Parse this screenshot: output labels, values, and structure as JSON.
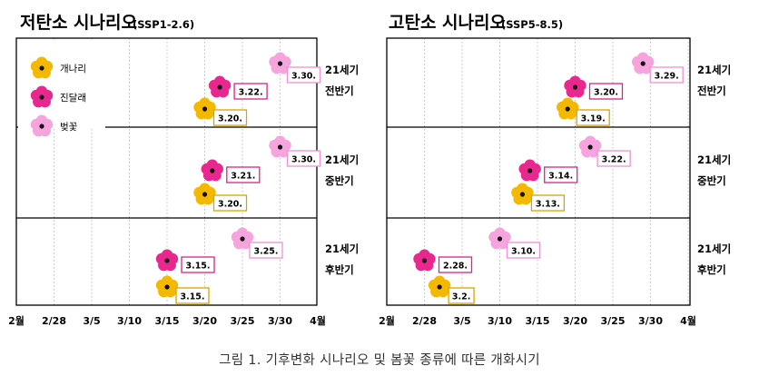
{
  "caption": "그림 1. 기후변화 시나리오 및 봄꽃 종류에 따른 개화시기",
  "colors": {
    "forsythia": "#f5b800",
    "azalea": "#e8288f",
    "cherry": "#f6a3de",
    "forsythia_box": "#d9a400",
    "azalea_box": "#d0288a",
    "cherry_box": "#f090d4"
  },
  "icons": [
    "flower-icon"
  ],
  "chart_data": [
    {
      "type": "scatter",
      "title": "저탄소 시나리오",
      "subtitle": "(SSP1-2.6)",
      "x_ticks": [
        "2월",
        "2/28",
        "3/5",
        "3/10",
        "3/15",
        "3/20",
        "3/25",
        "3/30",
        "4월"
      ],
      "xlim": [
        "2/23",
        "4/4"
      ],
      "grid": "vertical dotted",
      "legend": {
        "placement": "top-left",
        "items": [
          {
            "key": "forsythia",
            "label": "개나리"
          },
          {
            "key": "azalea",
            "label": "진달래"
          },
          {
            "key": "cherry",
            "label": "벚꽃"
          }
        ]
      },
      "periods": [
        {
          "label_line1": "21세기",
          "label_line2": "전반기",
          "points": [
            {
              "flower": "cherry",
              "date": "3/30",
              "label": "3.30."
            },
            {
              "flower": "azalea",
              "date": "3/22",
              "label": "3.22."
            },
            {
              "flower": "forsythia",
              "date": "3/20",
              "label": "3.20."
            }
          ]
        },
        {
          "label_line1": "21세기",
          "label_line2": "중반기",
          "points": [
            {
              "flower": "cherry",
              "date": "3/30",
              "label": "3.30."
            },
            {
              "flower": "azalea",
              "date": "3/21",
              "label": "3.21."
            },
            {
              "flower": "forsythia",
              "date": "3/20",
              "label": "3.20."
            }
          ]
        },
        {
          "label_line1": "21세기",
          "label_line2": "후반기",
          "points": [
            {
              "flower": "cherry",
              "date": "3/25",
              "label": "3.25."
            },
            {
              "flower": "azalea",
              "date": "3/15",
              "label": "3.15."
            },
            {
              "flower": "forsythia",
              "date": "3/15",
              "label": "3.15."
            }
          ]
        }
      ]
    },
    {
      "type": "scatter",
      "title": "고탄소 시나리오",
      "subtitle": "(SSP5-8.5)",
      "x_ticks": [
        "2월",
        "2/28",
        "3/5",
        "3/10",
        "3/15",
        "3/20",
        "3/25",
        "3/30",
        "4월"
      ],
      "xlim": [
        "2/23",
        "4/4"
      ],
      "grid": "vertical dotted",
      "periods": [
        {
          "label_line1": "21세기",
          "label_line2": "전반기",
          "points": [
            {
              "flower": "cherry",
              "date": "3/29",
              "label": "3.29."
            },
            {
              "flower": "azalea",
              "date": "3/20",
              "label": "3.20."
            },
            {
              "flower": "forsythia",
              "date": "3/19",
              "label": "3.19."
            }
          ]
        },
        {
          "label_line1": "21세기",
          "label_line2": "중반기",
          "points": [
            {
              "flower": "cherry",
              "date": "3/22",
              "label": "3.22."
            },
            {
              "flower": "azalea",
              "date": "3/14",
              "label": "3.14."
            },
            {
              "flower": "forsythia",
              "date": "3/13",
              "label": "3.13."
            }
          ]
        },
        {
          "label_line1": "21세기",
          "label_line2": "후반기",
          "points": [
            {
              "flower": "cherry",
              "date": "3/10",
              "label": "3.10."
            },
            {
              "flower": "azalea",
              "date": "2/28",
              "label": "2.28."
            },
            {
              "flower": "forsythia",
              "date": "3/2",
              "label": "3.2."
            }
          ]
        }
      ]
    }
  ]
}
